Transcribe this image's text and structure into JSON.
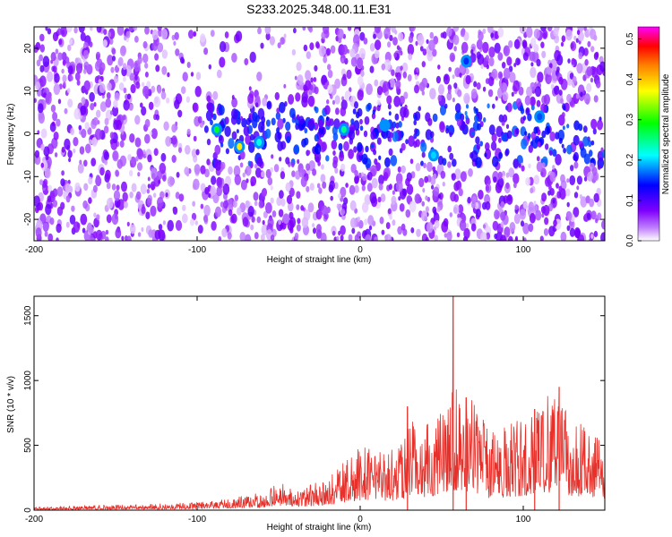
{
  "figure": {
    "title": "S233.2025.348.00.11.E31"
  },
  "chart_data": [
    {
      "type": "heatmap",
      "xlabel": "Height of straight line (km)",
      "ylabel": "Frequency (Hz)",
      "xlim": [
        -200,
        150
      ],
      "ylim": [
        -25,
        25
      ],
      "xticks": [
        -200,
        -100,
        0,
        100
      ],
      "yticks": [
        -20,
        -10,
        0,
        10,
        20
      ],
      "grid": false,
      "colorbar": {
        "label": "Normalized spectral amplitude",
        "range": [
          0.0,
          0.53
        ],
        "ticks": [
          0.0,
          0.1,
          0.2,
          0.3,
          0.4,
          0.5
        ],
        "colors": [
          "#ffffff",
          "#8000ff",
          "#0000ff",
          "#00ffff",
          "#00ff00",
          "#ffff00",
          "#ff8000",
          "#ff0000",
          "#ff00ff"
        ]
      },
      "hotspots": [
        {
          "x": -88,
          "y": 1,
          "value": 0.28
        },
        {
          "x": -74,
          "y": -3,
          "value": 0.38
        },
        {
          "x": -62,
          "y": -2,
          "value": 0.22
        },
        {
          "x": -10,
          "y": 1,
          "value": 0.25
        },
        {
          "x": 15,
          "y": 2,
          "value": 0.18
        },
        {
          "x": 45,
          "y": -5,
          "value": 0.2
        },
        {
          "x": 65,
          "y": 17,
          "value": 0.15
        },
        {
          "x": 110,
          "y": 4,
          "value": 0.16
        }
      ],
      "band": {
        "center_hz": 0,
        "halfwidth_hz": 7,
        "x_start": -95,
        "x_end": 150
      }
    },
    {
      "type": "line",
      "xlabel": "Height of straight line (km)",
      "ylabel": "SNR (10 * v/v)",
      "xlim": [
        -200,
        150
      ],
      "ylim": [
        0,
        1650
      ],
      "xticks": [
        -200,
        -100,
        0,
        100
      ],
      "yticks": [
        0,
        500,
        1000,
        1500
      ],
      "grid": false,
      "color": "#e8302a",
      "envelope": {
        "x": [
          -200,
          -150,
          -100,
          -80,
          -60,
          -50,
          -40,
          -20,
          -10,
          0,
          10,
          20,
          25,
          30,
          40,
          50,
          60,
          70,
          80,
          100,
          120,
          130,
          140,
          150
        ],
        "max": [
          25,
          40,
          60,
          90,
          140,
          240,
          160,
          250,
          380,
          500,
          450,
          480,
          520,
          730,
          660,
          820,
          1000,
          820,
          600,
          730,
          940,
          720,
          650,
          600
        ]
      },
      "peaks": [
        {
          "x": 57,
          "y": 1650
        },
        {
          "x": 122,
          "y": 950
        },
        {
          "x": 65,
          "y": 870
        },
        {
          "x": 29,
          "y": 800
        },
        {
          "x": 107,
          "y": 780
        }
      ]
    }
  ]
}
